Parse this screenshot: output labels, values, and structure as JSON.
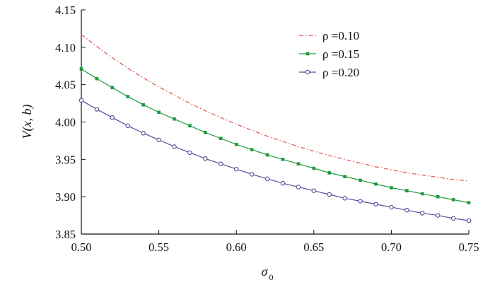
{
  "chart_data": {
    "type": "line",
    "title": "",
    "xlabel": "σ",
    "xlabel_subscript": "0",
    "ylabel": "V(x, b)",
    "xlim": [
      0.5,
      0.75
    ],
    "ylim": [
      3.85,
      4.15
    ],
    "x_ticks": [
      "0.50",
      "0.55",
      "0.60",
      "0.65",
      "0.70",
      "0.75"
    ],
    "y_ticks": [
      "3.85",
      "3.90",
      "3.95",
      "4.00",
      "4.05",
      "4.10",
      "4.15"
    ],
    "grid": false,
    "legend_position": "top-right",
    "x": [
      0.5,
      0.51,
      0.52,
      0.53,
      0.54,
      0.55,
      0.56,
      0.57,
      0.58,
      0.59,
      0.6,
      0.61,
      0.62,
      0.63,
      0.64,
      0.65,
      0.66,
      0.67,
      0.68,
      0.69,
      0.7,
      0.71,
      0.72,
      0.73,
      0.74,
      0.75
    ],
    "series": [
      {
        "name": "ρ =0.10",
        "color": "#e0504a",
        "style": "dash-dot",
        "marker": "none",
        "values": [
          4.117,
          4.101,
          4.086,
          4.072,
          4.059,
          4.047,
          4.036,
          4.025,
          4.015,
          4.006,
          3.997,
          3.989,
          3.981,
          3.974,
          3.967,
          3.961,
          3.955,
          3.95,
          3.945,
          3.94,
          3.936,
          3.932,
          3.929,
          3.926,
          3.923,
          3.921
        ]
      },
      {
        "name": "ρ =0.15",
        "color": "#1f9a3c",
        "style": "solid",
        "marker": "filled-square",
        "values": [
          4.071,
          4.058,
          4.046,
          4.034,
          4.023,
          4.013,
          4.004,
          3.995,
          3.986,
          3.978,
          3.97,
          3.963,
          3.956,
          3.95,
          3.944,
          3.938,
          3.932,
          3.927,
          3.922,
          3.917,
          3.912,
          3.908,
          3.904,
          3.9,
          3.896,
          3.892
        ]
      },
      {
        "name": "ρ =0.20",
        "color": "#5a4a9e",
        "style": "solid",
        "marker": "open-circle",
        "values": [
          4.029,
          4.017,
          4.006,
          3.995,
          3.985,
          3.976,
          3.967,
          3.959,
          3.951,
          3.944,
          3.937,
          3.93,
          3.924,
          3.918,
          3.913,
          3.908,
          3.903,
          3.898,
          3.894,
          3.89,
          3.886,
          3.882,
          3.878,
          3.875,
          3.871,
          3.868
        ]
      }
    ]
  }
}
